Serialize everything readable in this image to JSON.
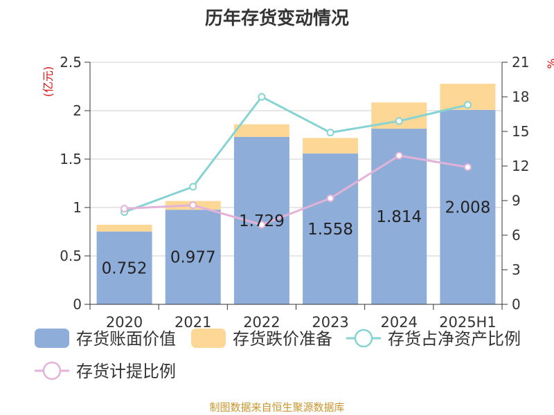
{
  "chart_data": {
    "type": "bar",
    "title": "历年存货变动情况",
    "categories": [
      "2020",
      "2021",
      "2022",
      "2023",
      "2024",
      "2025H1"
    ],
    "ylabel_left": "(亿元)",
    "ylabel_right": "%",
    "ylim_left": [
      0,
      2.5
    ],
    "yticks_left": [
      "0",
      "0.5",
      "1",
      "1.5",
      "2",
      "2.5"
    ],
    "ylim_right": [
      0,
      21
    ],
    "yticks_right": [
      "0",
      "3",
      "6",
      "9",
      "12",
      "15",
      "18",
      "21"
    ],
    "grid": true,
    "legend_position": "bottom",
    "series": [
      {
        "name": "存货账面价值",
        "kind": "bar",
        "stack": "a",
        "color": "#8eadd9",
        "values": [
          0.752,
          0.977,
          1.729,
          1.558,
          1.814,
          2.008
        ],
        "labels": [
          "0.752",
          "0.977",
          "1.729",
          "1.558",
          "1.814",
          "2.008"
        ]
      },
      {
        "name": "存货跌价准备",
        "kind": "bar",
        "stack": "a",
        "color": "#fdd796",
        "values": [
          0.07,
          0.09,
          0.13,
          0.16,
          0.27,
          0.27
        ]
      },
      {
        "name": "存货占净资产比例",
        "kind": "line",
        "axis": "right",
        "color": "#86d3d3",
        "values": [
          8.0,
          10.2,
          18.0,
          14.9,
          15.9,
          17.3
        ]
      },
      {
        "name": "存货计提比例",
        "kind": "line",
        "axis": "right",
        "color": "#e3b2d8",
        "values": [
          8.3,
          8.6,
          6.9,
          9.2,
          12.9,
          11.9
        ]
      }
    ]
  },
  "footer": {
    "source": "制图数据来自恒生聚源数据库"
  }
}
